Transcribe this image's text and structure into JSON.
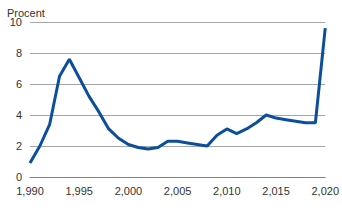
{
  "chart_data": {
    "type": "line",
    "ylabel": "Procent",
    "x": [
      1990,
      1991,
      1992,
      1993,
      1994,
      1995,
      1996,
      1997,
      1998,
      1999,
      2000,
      2001,
      2002,
      2003,
      2004,
      2005,
      2006,
      2007,
      2008,
      2009,
      2010,
      2011,
      2012,
      2013,
      2014,
      2015,
      2016,
      2017,
      2018,
      2019,
      2020
    ],
    "values": [
      0.9,
      2.0,
      3.4,
      6.5,
      7.6,
      6.4,
      5.2,
      4.2,
      3.1,
      2.5,
      2.1,
      1.9,
      1.8,
      1.9,
      2.3,
      2.3,
      2.2,
      2.1,
      2.0,
      2.7,
      3.1,
      2.8,
      3.1,
      3.5,
      4.0,
      3.8,
      3.7,
      3.6,
      3.5,
      3.5,
      9.6
    ],
    "color": "#0b4f9c",
    "xlim": [
      1990,
      2020
    ],
    "xticks": [
      1990,
      1995,
      2000,
      2005,
      2010,
      2015,
      2020
    ],
    "ylim": [
      0,
      10
    ],
    "yticks": [
      0,
      2,
      4,
      6,
      8,
      10
    ],
    "grid": true
  }
}
